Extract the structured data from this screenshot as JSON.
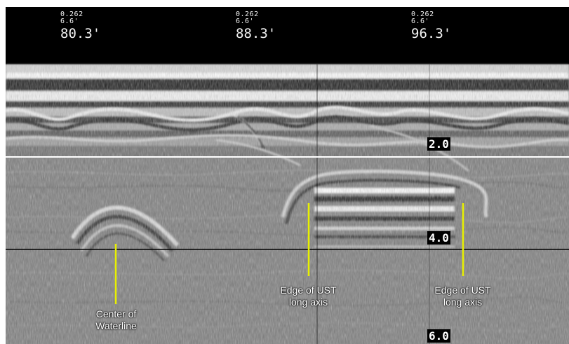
{
  "markers": [
    {
      "line1": "0.262",
      "line2": "6.6'",
      "distance": "80.3'"
    },
    {
      "line1": "0.262",
      "line2": "6.6'",
      "distance": "88.3'"
    },
    {
      "line1": "0.262",
      "line2": "6.6'",
      "distance": "96.3'"
    }
  ],
  "depth_labels": [
    "2.0",
    "4.0",
    "6.0"
  ],
  "annotations": [
    {
      "line1": "Center of",
      "line2": "Waterline"
    },
    {
      "line1": "Edge of UST",
      "line2": "long axis"
    },
    {
      "line1": "Edge of UST",
      "line2": "long axis"
    }
  ],
  "colors": {
    "annotation_line": "#e8f000",
    "header_band": "#000000",
    "depth_line_white": "#ffffff",
    "depth_line_black": "#000000"
  }
}
